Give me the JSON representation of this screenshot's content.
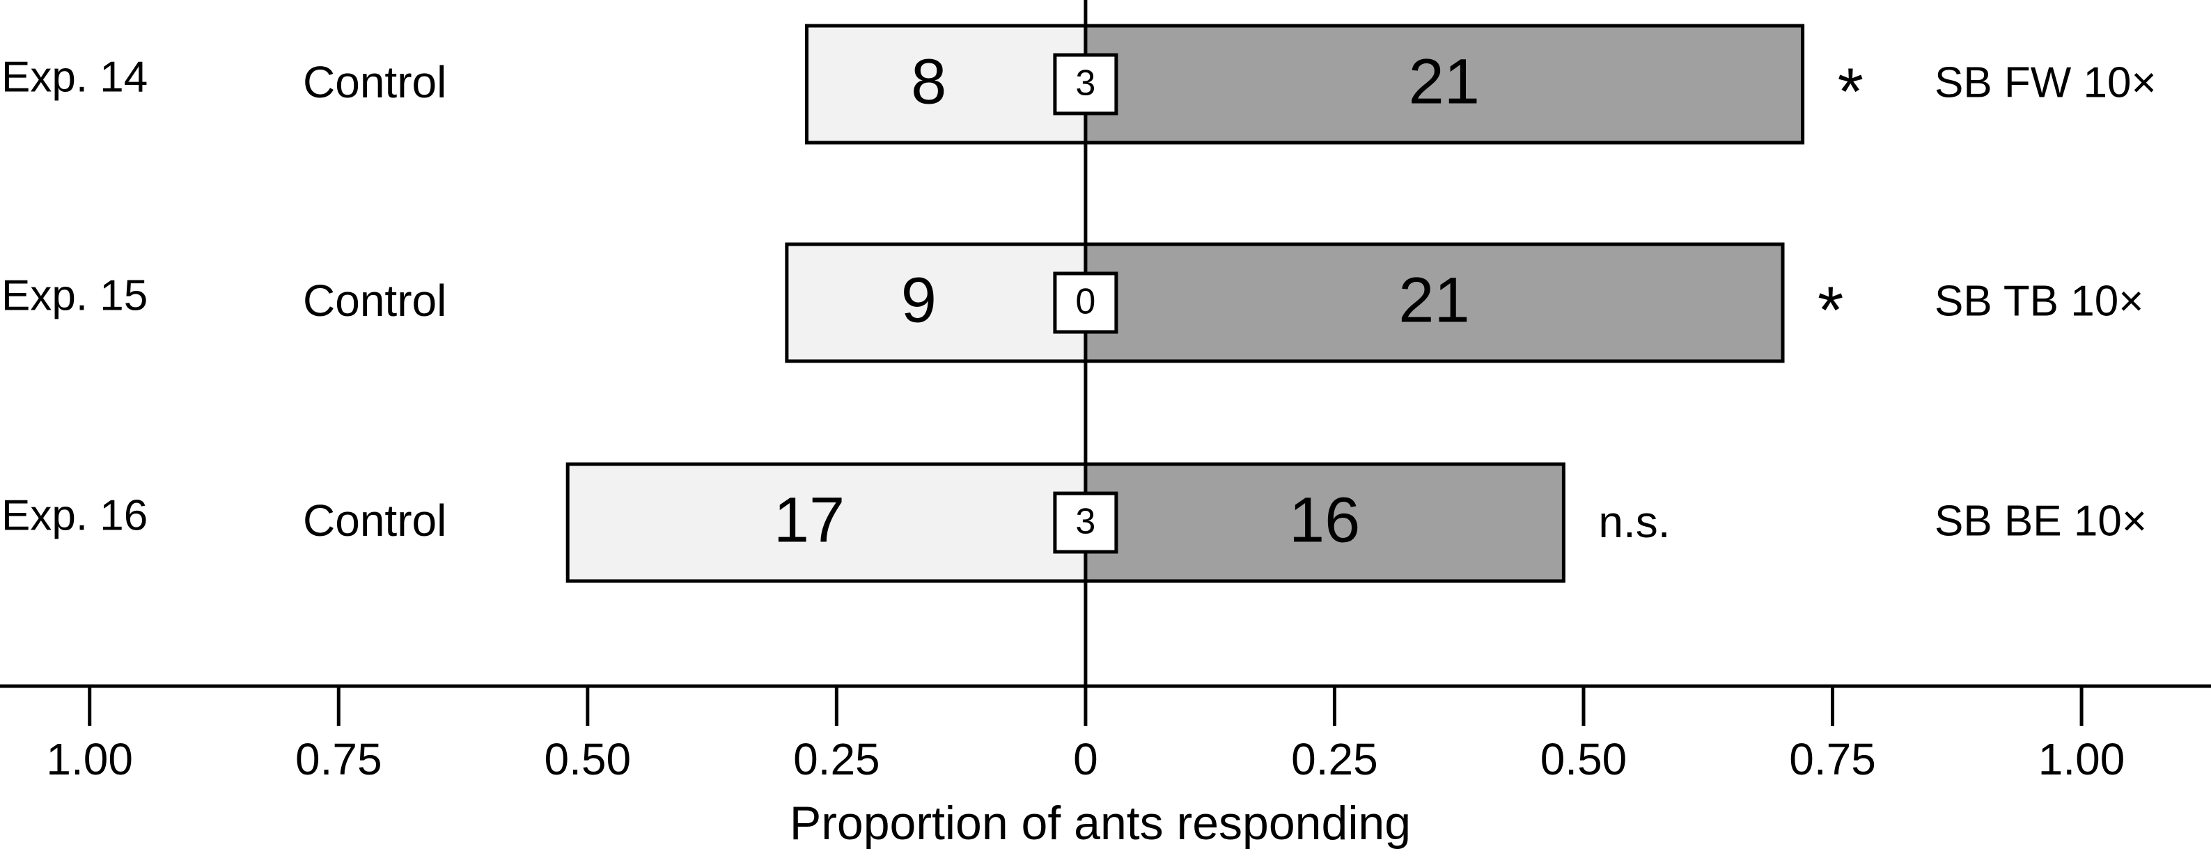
{
  "chart_data": {
    "type": "diverging_bar",
    "x_label": "Proportion of ants responding",
    "categories": [
      "Exp. 14",
      "Exp. 15",
      "Exp. 16"
    ],
    "left_labels": [
      "Control",
      "Control",
      "Control"
    ],
    "right_labels": [
      "SB FW 10×",
      "SB TB 10×",
      "SB BE 10×"
    ],
    "significance": [
      "*",
      "*",
      "n.s."
    ],
    "series": [
      {
        "color": "#f2f2f2",
        "values": [
          -0.28,
          -0.3,
          -0.52
        ],
        "counts": [
          8,
          9,
          17
        ]
      },
      {
        "color": "#a0a0a0",
        "values": [
          0.72,
          0.7,
          0.48
        ],
        "counts": [
          21,
          21,
          16
        ]
      }
    ],
    "no_choice_counts": [
      3,
      0,
      3
    ],
    "xlim": [
      -1.09,
      1.13
    ],
    "xticks": [
      {
        "value": -1,
        "label": "1.00"
      },
      {
        "value": -0.75,
        "label": "0.75"
      },
      {
        "value": -0.5,
        "label": "0.50"
      },
      {
        "value": -0.25,
        "label": "0.25"
      },
      0,
      0.25,
      {
        "value": 0.5,
        "label": "0.50"
      },
      0.75,
      {
        "value": 1,
        "label": "1.00"
      }
    ]
  }
}
